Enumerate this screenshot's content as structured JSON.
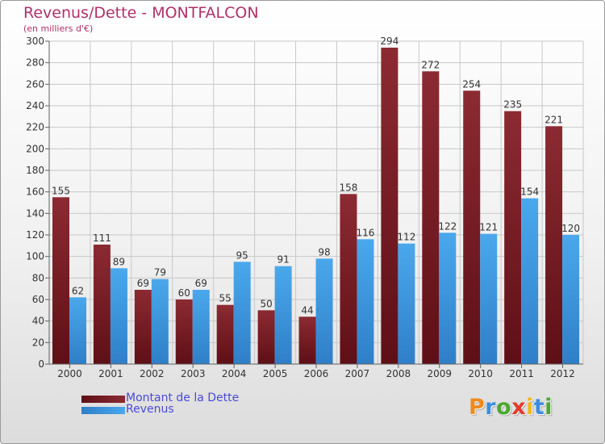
{
  "title": "Revenus/Dette - MONTFALCON",
  "unit_note": "(en milliers d'€)",
  "colors": {
    "title": "#b0306a",
    "debt_bar": "#7a1e26",
    "revenue_bar": "#3f9be0",
    "legend_text": "#4a4ad8",
    "grid": "#c8c8c8",
    "axis": "#606060"
  },
  "chart_data": {
    "type": "bar",
    "title": "Revenus/Dette - MONTFALCON",
    "ylabel": "(en milliers d'€)",
    "xlabel": "",
    "categories": [
      "2000",
      "2001",
      "2002",
      "2003",
      "2004",
      "2005",
      "2006",
      "2007",
      "2008",
      "2009",
      "2010",
      "2011",
      "2012"
    ],
    "series": [
      {
        "name": "Montant de la Dette",
        "values": [
          155,
          111,
          69,
          60,
          55,
          50,
          44,
          158,
          294,
          272,
          254,
          235,
          221
        ]
      },
      {
        "name": "Revenus",
        "values": [
          62,
          89,
          79,
          69,
          95,
          91,
          98,
          116,
          112,
          122,
          121,
          154,
          120
        ]
      }
    ],
    "ylim": [
      0,
      300
    ],
    "yticks": [
      0,
      20,
      40,
      60,
      80,
      100,
      120,
      140,
      160,
      180,
      200,
      220,
      240,
      260,
      280,
      300
    ],
    "grid": true,
    "legend_position": "bottom-left"
  },
  "legend": {
    "debt_label": "Montant de la Dette",
    "revenue_label": "Revenus"
  },
  "logo": {
    "letters": [
      "P",
      "r",
      "o",
      "x",
      "i",
      "t",
      "i"
    ],
    "letter_colors": [
      "#f08a1c",
      "#3a8ee0",
      "#4aa832",
      "#e23a2c",
      "#f0b91c",
      "#3a8ee0",
      "#4aa832"
    ]
  }
}
